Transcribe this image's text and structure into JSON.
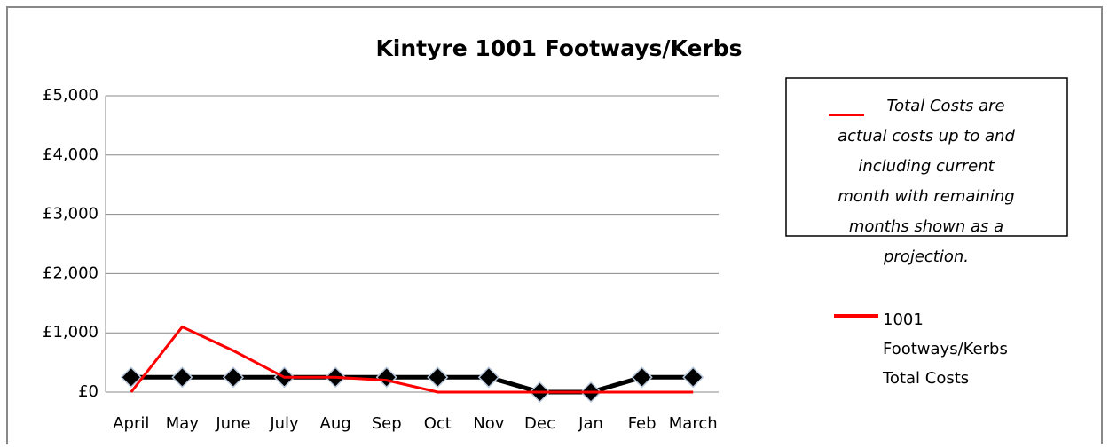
{
  "chart_data": {
    "type": "line",
    "title": "Kintyre 1001 Footways/Kerbs",
    "categories": [
      "April",
      "May",
      "June",
      "July",
      "Aug",
      "Sep",
      "Oct",
      "Nov",
      "Dec",
      "Jan",
      "Feb",
      "March"
    ],
    "series": [
      {
        "name": "1001 Footways/Kerbs Total Costs",
        "color": "#ff0000",
        "values": [
          0,
          1100,
          700,
          250,
          250,
          200,
          0,
          0,
          0,
          0,
          0,
          0
        ]
      },
      {
        "color": "#000000",
        "marker": "diamond",
        "values": [
          250,
          250,
          250,
          250,
          250,
          250,
          250,
          250,
          0,
          0,
          250,
          250
        ]
      }
    ],
    "ylim": [
      0,
      5000
    ],
    "yticks": [
      {
        "value": 0,
        "label": "£0"
      },
      {
        "value": 1000,
        "label": "£1,000"
      },
      {
        "value": 2000,
        "label": "£2,000"
      },
      {
        "value": 3000,
        "label": "£3,000"
      },
      {
        "value": 4000,
        "label": "£4,000"
      },
      {
        "value": 5000,
        "label": "£5,000"
      }
    ],
    "grid": true,
    "annotation_lines": [
      "Total Costs are",
      "actual costs up to and",
      "including current",
      "month with remaining",
      "months shown as a",
      "projection."
    ]
  }
}
